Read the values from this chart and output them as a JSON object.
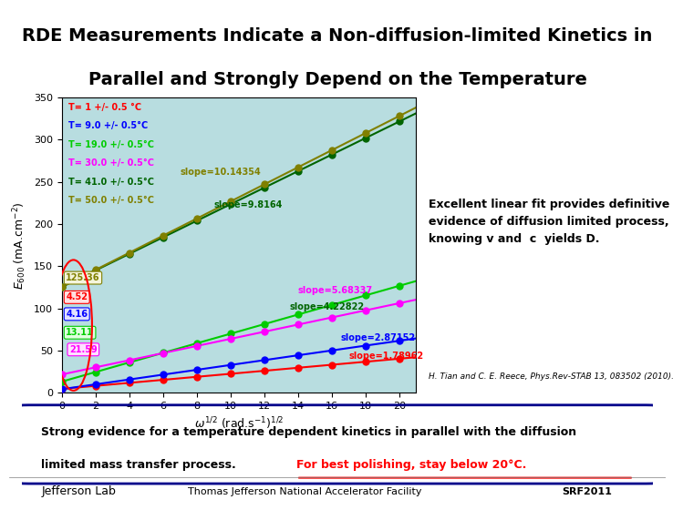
{
  "title_line1": "RDE Measurements Indicate a Non-diffusion-limited Kinetics in",
  "title_line2": "Parallel and Strongly Depend on the Temperature",
  "title_fontsize": 14,
  "bg_color_plot": "#b8dde0",
  "bg_color_right": "#d0e8ec",
  "bg_color_title": "#ffffff",
  "slopes": [
    1.78962,
    2.87152,
    5.68337,
    4.22822,
    9.8164,
    10.14354
  ],
  "intercepts": [
    4.52,
    4.16,
    13.11,
    21.59,
    125.36,
    125.36
  ],
  "colors": [
    "#ff0000",
    "#0000ff",
    "#00cc00",
    "#ff00ff",
    "#006400",
    "#808000"
  ],
  "temps": [
    "T= 1 +/- 0.5 °C",
    "T= 9.0 +/- 0.5°C",
    "T= 19.0 +/- 0.5°C",
    "T= 30.0 +/- 0.5°C",
    "T= 41.0 +/- 0.5°C",
    "T= 50.0 +/- 0.5°C"
  ],
  "slope_texts": [
    [
      "slope=1.78962",
      17.0,
      40.0,
      "#ff0000"
    ],
    [
      "slope=2.87152",
      16.5,
      62.0,
      "#0000ff"
    ],
    [
      "slope=5.68337",
      14.0,
      118.0,
      "#ff00ff"
    ],
    [
      "slope=4.22822",
      13.5,
      98.0,
      "#006400"
    ],
    [
      "slope=9.8164",
      9.0,
      220.0,
      "#006400"
    ],
    [
      "slope=10.14354",
      7.0,
      258.0,
      "#808000"
    ]
  ],
  "intercept_labels": [
    [
      "125.36",
      0.25,
      133.0,
      "#808000",
      "#f5f5dc"
    ],
    [
      "21.59",
      0.45,
      48.0,
      "#ff00ff",
      "#ffe0ff"
    ],
    [
      "13.11",
      0.25,
      68.0,
      "#00cc00",
      "#e0ffe0"
    ],
    [
      "4.16",
      0.25,
      90.0,
      "#0000ff",
      "#e0e0ff"
    ],
    [
      "4.52",
      0.25,
      110.0,
      "#ff0000",
      "#ffe0e0"
    ]
  ],
  "xlabel": "$\\omega^{1/2}$ (rad.s$^{-1}$)$^{1/2}$",
  "ylabel": "$E_{600}$ (mA.cm$^{-2}$)",
  "xlim": [
    0,
    21
  ],
  "ylim": [
    0,
    350
  ],
  "xticks": [
    0,
    2,
    4,
    6,
    8,
    10,
    12,
    14,
    16,
    18,
    20
  ],
  "yticks": [
    0,
    50,
    100,
    150,
    200,
    250,
    300,
    350
  ],
  "annotation_text": "Excellent linear fit provides definitive\nevidence of diffusion limited process,\nknowing v and  c  yields D.",
  "citation": "H. Tian and C. E. Reece, Phys.Rev-STAB 13, 083502 (2010).",
  "bottom_text1": "Strong evidence for a temperature dependent kinetics in parallel with the diffusion",
  "bottom_text2": "limited mass transfer process.  ",
  "bottom_text_red": "For best polishing, stay below 20°C.",
  "footer_left": "Jefferson Lab",
  "footer_center": "Thomas Jefferson National Accelerator Facility",
  "footer_right": "SRF2011"
}
